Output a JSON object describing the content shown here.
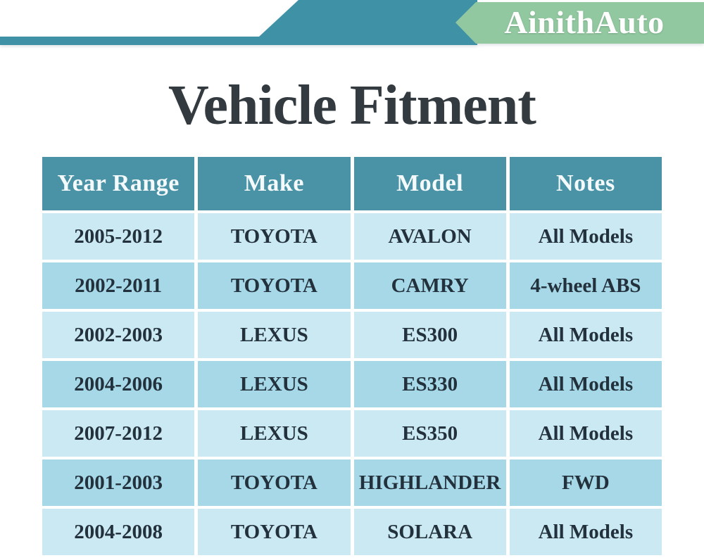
{
  "brand": {
    "name": "AinithAuto"
  },
  "page": {
    "title": "Vehicle Fitment"
  },
  "table": {
    "headers": [
      "Year Range",
      "Make",
      "Model",
      "Notes"
    ],
    "rows": [
      [
        "2005-2012",
        "TOYOTA",
        "AVALON",
        "All Models"
      ],
      [
        "2002-2011",
        "TOYOTA",
        "CAMRY",
        "4-wheel ABS"
      ],
      [
        "2002-2003",
        "LEXUS",
        "ES300",
        "All Models"
      ],
      [
        "2004-2006",
        "LEXUS",
        "ES330",
        "All Models"
      ],
      [
        "2007-2012",
        "LEXUS",
        "ES350",
        "All Models"
      ],
      [
        "2001-2003",
        "TOYOTA",
        "HIGHLANDER",
        "FWD"
      ],
      [
        "2004-2008",
        "TOYOTA",
        "SOLARA",
        "All Models"
      ]
    ]
  },
  "colors": {
    "banner_teal": "#3f92a6",
    "banner_green": "#92c8a0",
    "header_bg": "#4a93a6",
    "header_text": "#f4fafb",
    "row_light": "#cbe9f2",
    "row_dark": "#a6d8e8",
    "cell_text": "#22313c",
    "title_text": "#333a40"
  }
}
